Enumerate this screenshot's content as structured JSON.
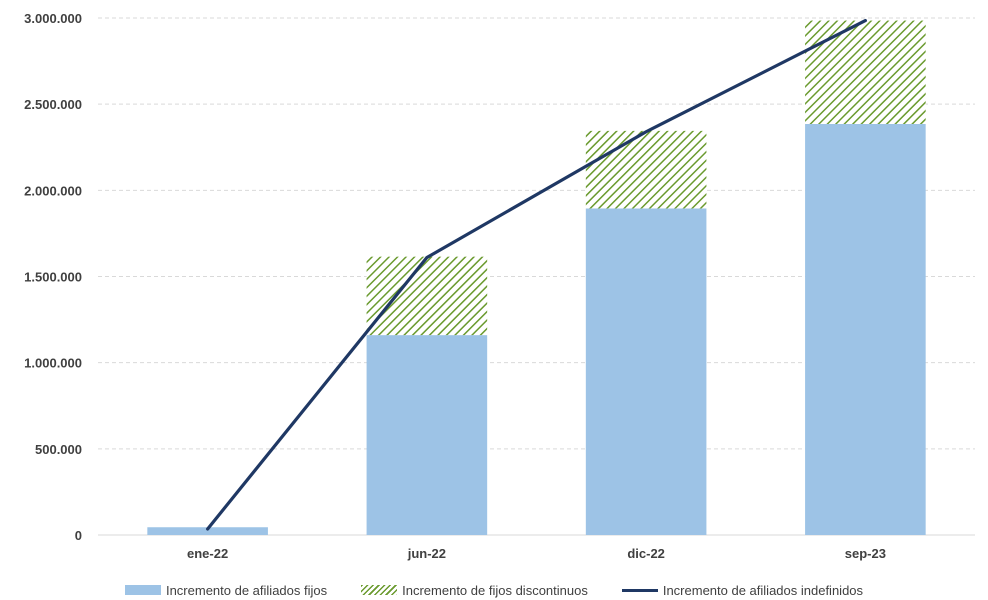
{
  "chart_data": {
    "type": "bar",
    "stacked": true,
    "categories": [
      "ene-22",
      "jun-22",
      "dic-22",
      "sep-23"
    ],
    "series": [
      {
        "name": "Incremento de afiliados fijos",
        "kind": "bar",
        "pattern": "solid",
        "color": "#9dc3e6",
        "values": [
          45000,
          1160000,
          1895000,
          2385000
        ]
      },
      {
        "name": "Incremento de fijos discontinuos",
        "kind": "bar",
        "pattern": "hatched",
        "color": "#6a9a2e",
        "values": [
          0,
          455000,
          450000,
          600000
        ]
      },
      {
        "name": "Incremento de afiliados indefinidos",
        "kind": "line",
        "color": "#1f3864",
        "values": [
          35000,
          1610000,
          2340000,
          2985000
        ]
      }
    ],
    "ylim": [
      0,
      3000000
    ],
    "yticks": [
      0,
      500000,
      1000000,
      1500000,
      2000000,
      2500000,
      3000000
    ],
    "ytick_labels": [
      "0",
      "500.000",
      "1.000.000",
      "1.500.000",
      "2.000.000",
      "2.500.000",
      "3.000.000"
    ],
    "grid": true,
    "legend_position": "bottom"
  }
}
